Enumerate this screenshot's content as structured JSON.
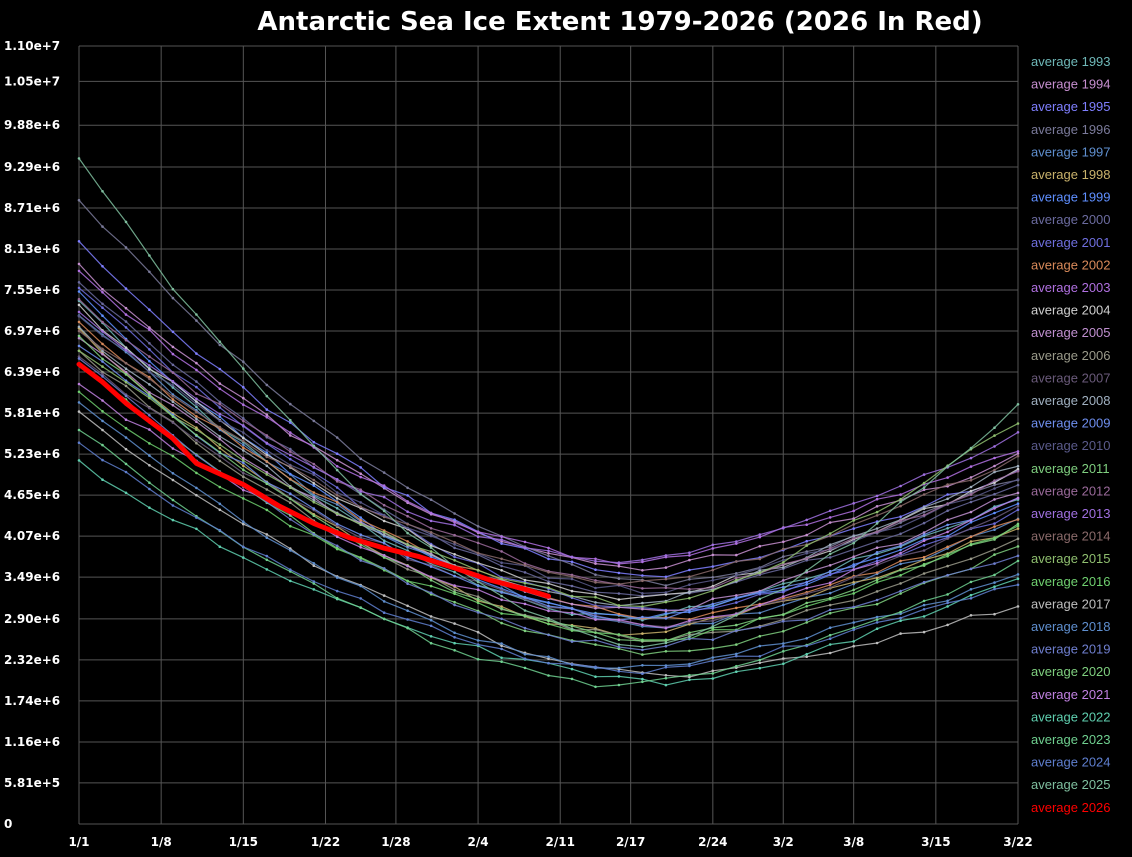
{
  "chart_data": {
    "type": "line",
    "title": "Antarctic Sea Ice Extent 1979-2026 (2026 In Red)",
    "xlabel": "",
    "ylabel": "",
    "x_unit": "day of year (Jan 1 = 1)",
    "xlim": [
      1,
      81
    ],
    "ylim": [
      0,
      11000000
    ],
    "grid": true,
    "legend_position": "right",
    "x_ticks": [
      {
        "day": 1,
        "label": "1/1"
      },
      {
        "day": 8,
        "label": "1/8"
      },
      {
        "day": 15,
        "label": "1/15"
      },
      {
        "day": 22,
        "label": "1/22"
      },
      {
        "day": 28,
        "label": "1/28"
      },
      {
        "day": 35,
        "label": "2/4"
      },
      {
        "day": 42,
        "label": "2/11"
      },
      {
        "day": 48,
        "label": "2/17"
      },
      {
        "day": 55,
        "label": "2/24"
      },
      {
        "day": 61,
        "label": "3/2"
      },
      {
        "day": 67,
        "label": "3/8"
      },
      {
        "day": 74,
        "label": "3/15"
      },
      {
        "day": 81,
        "label": "3/22"
      }
    ],
    "y_ticks": [
      {
        "value": 0,
        "label": "0"
      },
      {
        "value": 581000,
        "label": "5.81e+5"
      },
      {
        "value": 1160000,
        "label": "1.16e+6"
      },
      {
        "value": 1740000,
        "label": "1.74e+6"
      },
      {
        "value": 2320000,
        "label": "2.32e+6"
      },
      {
        "value": 2900000,
        "label": "2.90e+6"
      },
      {
        "value": 3490000,
        "label": "3.49e+6"
      },
      {
        "value": 4070000,
        "label": "4.07e+6"
      },
      {
        "value": 4650000,
        "label": "4.65e+6"
      },
      {
        "value": 5230000,
        "label": "5.23e+6"
      },
      {
        "value": 5810000,
        "label": "5.81e+6"
      },
      {
        "value": 6390000,
        "label": "6.39e+6"
      },
      {
        "value": 6970000,
        "label": "6.97e+6"
      },
      {
        "value": 7550000,
        "label": "7.55e+6"
      },
      {
        "value": 8130000,
        "label": "8.13e+6"
      },
      {
        "value": 8710000,
        "label": "8.71e+6"
      },
      {
        "value": 9290000,
        "label": "9.29e+6"
      },
      {
        "value": 9880000,
        "label": "9.88e+6"
      },
      {
        "value": 10500000,
        "label": "1.05e+7"
      },
      {
        "value": 11000000,
        "label": "1.10e+7"
      }
    ],
    "series": [
      {
        "name": "average 1993",
        "color": "#6fb8b8",
        "start": 7400000,
        "min": 2900000,
        "end": 4600000
      },
      {
        "name": "average 1994",
        "color": "#c78fd0",
        "start": 7900000,
        "min": 3600000,
        "end": 5200000
      },
      {
        "name": "average 1995",
        "color": "#7f7fff",
        "start": 8200000,
        "min": 3500000,
        "end": 5000000
      },
      {
        "name": "average 1996",
        "color": "#7a7a9a",
        "start": 8850000,
        "min": 3400000,
        "end": 4900000
      },
      {
        "name": "average 1997",
        "color": "#5f8fcf",
        "start": 7200000,
        "min": 2800000,
        "end": 4300000
      },
      {
        "name": "average 1998",
        "color": "#c9b26b",
        "start": 7000000,
        "min": 2700000,
        "end": 4200000
      },
      {
        "name": "average 1999",
        "color": "#5f8fff",
        "start": 7500000,
        "min": 2900000,
        "end": 4500000
      },
      {
        "name": "average 2000",
        "color": "#6b6b9f",
        "start": 7700000,
        "min": 3200000,
        "end": 4800000
      },
      {
        "name": "average 2001",
        "color": "#6f6fdf",
        "start": 7600000,
        "min": 3000000,
        "end": 4400000
      },
      {
        "name": "average 2002",
        "color": "#d98a5a",
        "start": 7100000,
        "min": 2900000,
        "end": 4300000
      },
      {
        "name": "average 2003",
        "color": "#b070e0",
        "start": 7800000,
        "min": 3700000,
        "end": 5300000
      },
      {
        "name": "average 2004",
        "color": "#cfcfcf",
        "start": 7300000,
        "min": 3200000,
        "end": 5000000
      },
      {
        "name": "average 2005",
        "color": "#c090d0",
        "start": 6900000,
        "min": 3000000,
        "end": 4700000
      },
      {
        "name": "average 2006",
        "color": "#9a9a8a",
        "start": 6700000,
        "min": 2600000,
        "end": 4000000
      },
      {
        "name": "average 2007",
        "color": "#6a5a7a",
        "start": 6600000,
        "min": 2800000,
        "end": 4500000
      },
      {
        "name": "average 2008",
        "color": "#a0b0c0",
        "start": 7000000,
        "min": 3100000,
        "end": 5100000
      },
      {
        "name": "average 2009",
        "color": "#6f8fef",
        "start": 6800000,
        "min": 2900000,
        "end": 4600000
      },
      {
        "name": "average 2010",
        "color": "#5a5a8a",
        "start": 7200000,
        "min": 3300000,
        "end": 4900000
      },
      {
        "name": "average 2011",
        "color": "#7fcf7f",
        "start": 6500000,
        "min": 2400000,
        "end": 3900000
      },
      {
        "name": "average 2012",
        "color": "#9a6a9a",
        "start": 7400000,
        "min": 3300000,
        "end": 5000000
      },
      {
        "name": "average 2013",
        "color": "#a070e0",
        "start": 7200000,
        "min": 3700000,
        "end": 5500000
      },
      {
        "name": "average 2014",
        "color": "#8a6a6a",
        "start": 7000000,
        "min": 3400000,
        "end": 5200000
      },
      {
        "name": "average 2015",
        "color": "#8fbf6f",
        "start": 6700000,
        "min": 3100000,
        "end": 5700000
      },
      {
        "name": "average 2016",
        "color": "#6fcf6f",
        "start": 6100000,
        "min": 2600000,
        "end": 4200000
      },
      {
        "name": "average 2017",
        "color": "#bfbfbf",
        "start": 5800000,
        "min": 2100000,
        "end": 3100000
      },
      {
        "name": "average 2018",
        "color": "#5f8fcf",
        "start": 6000000,
        "min": 2200000,
        "end": 3500000
      },
      {
        "name": "average 2019",
        "color": "#6f7fcf",
        "start": 6600000,
        "min": 2500000,
        "end": 3800000
      },
      {
        "name": "average 2020",
        "color": "#7fcf7f",
        "start": 6900000,
        "min": 2600000,
        "end": 4200000
      },
      {
        "name": "average 2021",
        "color": "#c080e0",
        "start": 6200000,
        "min": 2800000,
        "end": 4600000
      },
      {
        "name": "average 2022",
        "color": "#5fcfaf",
        "start": 5100000,
        "min": 2000000,
        "end": 3500000
      },
      {
        "name": "average 2023",
        "color": "#6fcf8f",
        "start": 5600000,
        "min": 1950000,
        "end": 3700000
      },
      {
        "name": "average 2024",
        "color": "#5f7fcf",
        "start": 5400000,
        "min": 2150000,
        "end": 3400000
      },
      {
        "name": "average 2025",
        "color": "#7fbf9f",
        "start": 9400000,
        "min": 2500000,
        "end": 5900000
      },
      {
        "name": "average 2026",
        "color": "#ff0000",
        "highlight": true,
        "points": [
          {
            "day": 1,
            "value": 6500000
          },
          {
            "day": 3,
            "value": 6250000
          },
          {
            "day": 5,
            "value": 5950000
          },
          {
            "day": 7,
            "value": 5700000
          },
          {
            "day": 9,
            "value": 5450000
          },
          {
            "day": 11,
            "value": 5100000
          },
          {
            "day": 13,
            "value": 4950000
          },
          {
            "day": 15,
            "value": 4800000
          },
          {
            "day": 18,
            "value": 4500000
          },
          {
            "day": 21,
            "value": 4250000
          },
          {
            "day": 24,
            "value": 4050000
          },
          {
            "day": 27,
            "value": 3900000
          },
          {
            "day": 30,
            "value": 3780000
          },
          {
            "day": 33,
            "value": 3620000
          },
          {
            "day": 36,
            "value": 3450000
          },
          {
            "day": 39,
            "value": 3320000
          },
          {
            "day": 41,
            "value": 3220000
          }
        ]
      }
    ]
  }
}
